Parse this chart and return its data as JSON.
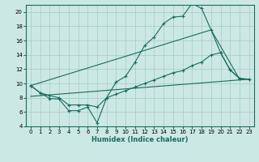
{
  "xlabel": "Humidex (Indice chaleur)",
  "bg_color": "#cce8e4",
  "grid_color": "#aacfca",
  "line_color": "#1a6b60",
  "xlim": [
    -0.5,
    23.5
  ],
  "ylim": [
    4,
    21
  ],
  "yticks": [
    4,
    6,
    8,
    10,
    12,
    14,
    16,
    18,
    20
  ],
  "xticks": [
    0,
    1,
    2,
    3,
    4,
    5,
    6,
    7,
    8,
    9,
    10,
    11,
    12,
    13,
    14,
    15,
    16,
    17,
    18,
    19,
    20,
    21,
    22,
    23
  ],
  "tick_fontsize": 5.0,
  "xlabel_fontsize": 6.0,
  "line1_x": [
    0,
    1,
    2,
    3,
    4,
    5,
    6,
    7,
    8,
    9,
    10,
    11,
    12,
    13,
    14,
    15,
    16,
    17,
    18,
    19,
    20,
    21,
    22,
    23
  ],
  "line1_y": [
    9.7,
    8.7,
    7.9,
    7.8,
    6.2,
    6.2,
    6.7,
    4.5,
    8.0,
    10.2,
    11.0,
    13.0,
    15.3,
    16.5,
    18.4,
    19.3,
    19.4,
    21.2,
    20.5,
    17.5,
    14.3,
    11.9,
    10.7,
    10.6
  ],
  "line2_x": [
    0,
    19,
    22,
    23
  ],
  "line2_y": [
    9.7,
    17.5,
    10.6,
    10.6
  ],
  "line3_x": [
    0,
    23
  ],
  "line3_y": [
    8.2,
    10.6
  ],
  "line4_x": [
    0,
    1,
    2,
    3,
    4,
    5,
    6,
    7,
    8,
    9,
    10,
    11,
    12,
    13,
    14,
    15,
    16,
    17,
    18,
    19,
    20,
    21,
    22,
    23
  ],
  "line4_y": [
    9.7,
    8.7,
    8.3,
    8.0,
    7.0,
    7.0,
    7.0,
    6.7,
    8.0,
    8.5,
    9.0,
    9.5,
    10.0,
    10.5,
    11.0,
    11.5,
    11.8,
    12.5,
    13.0,
    14.0,
    14.3,
    11.9,
    10.7,
    10.6
  ]
}
